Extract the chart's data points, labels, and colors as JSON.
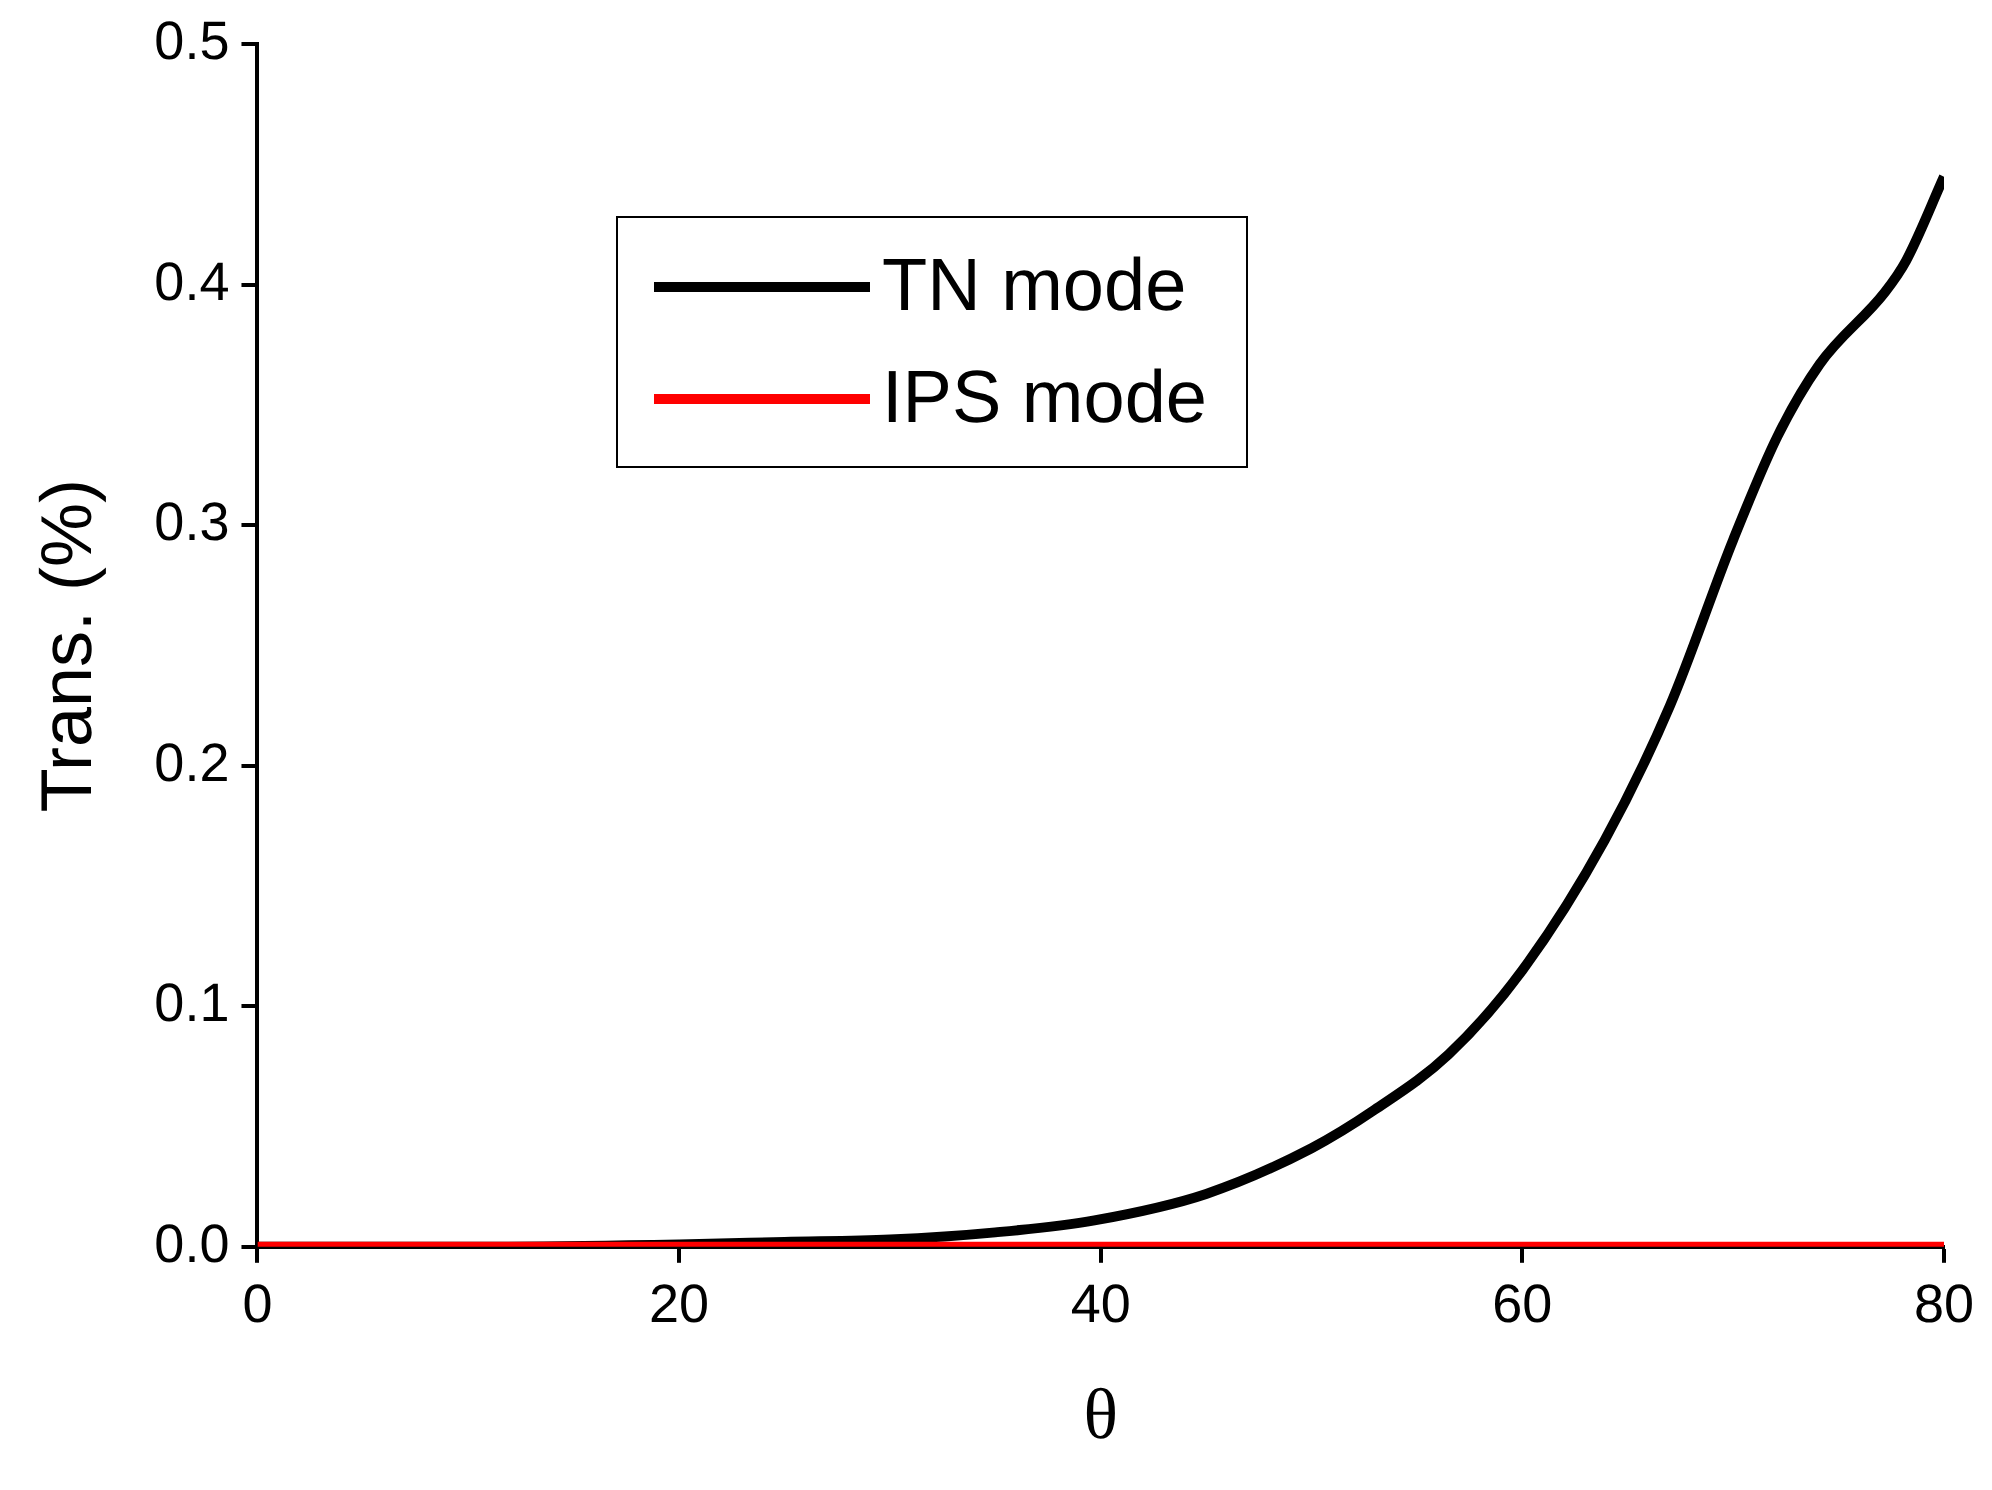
{
  "chart_data": {
    "type": "line",
    "xlabel": "θ",
    "ylabel": "Trans. (%)",
    "xlim": [
      0,
      80
    ],
    "xticks": [
      0,
      20,
      40,
      60,
      80
    ],
    "ylim": [
      0,
      0.5
    ],
    "yticks": [
      {
        "value": 0,
        "label": "0.0"
      },
      0.1,
      0.2,
      0.3,
      0.4,
      0.5
    ],
    "grid": false,
    "legend": "top left",
    "marker": "none",
    "line_style": "solid",
    "series": [
      {
        "name": "TN mode",
        "color": "#000000",
        "x": [
          0,
          10,
          20,
          25,
          30,
          35,
          39.7,
          45,
          50,
          53,
          56.5,
          60,
          63.9,
          67,
          70,
          72.1,
          74.1,
          77.2,
          78.2,
          80
        ],
        "values": [
          0,
          0,
          0.001,
          0.002,
          0.003,
          0.006,
          0.011,
          0.022,
          0.041,
          0.057,
          0.08,
          0.115,
          0.169,
          0.225,
          0.294,
          0.337,
          0.367,
          0.397,
          0.41,
          0.445
        ]
      },
      {
        "name": "IPS mode",
        "color": "#ff0000",
        "x": [
          0,
          80
        ],
        "values": [
          0,
          0
        ]
      }
    ]
  }
}
